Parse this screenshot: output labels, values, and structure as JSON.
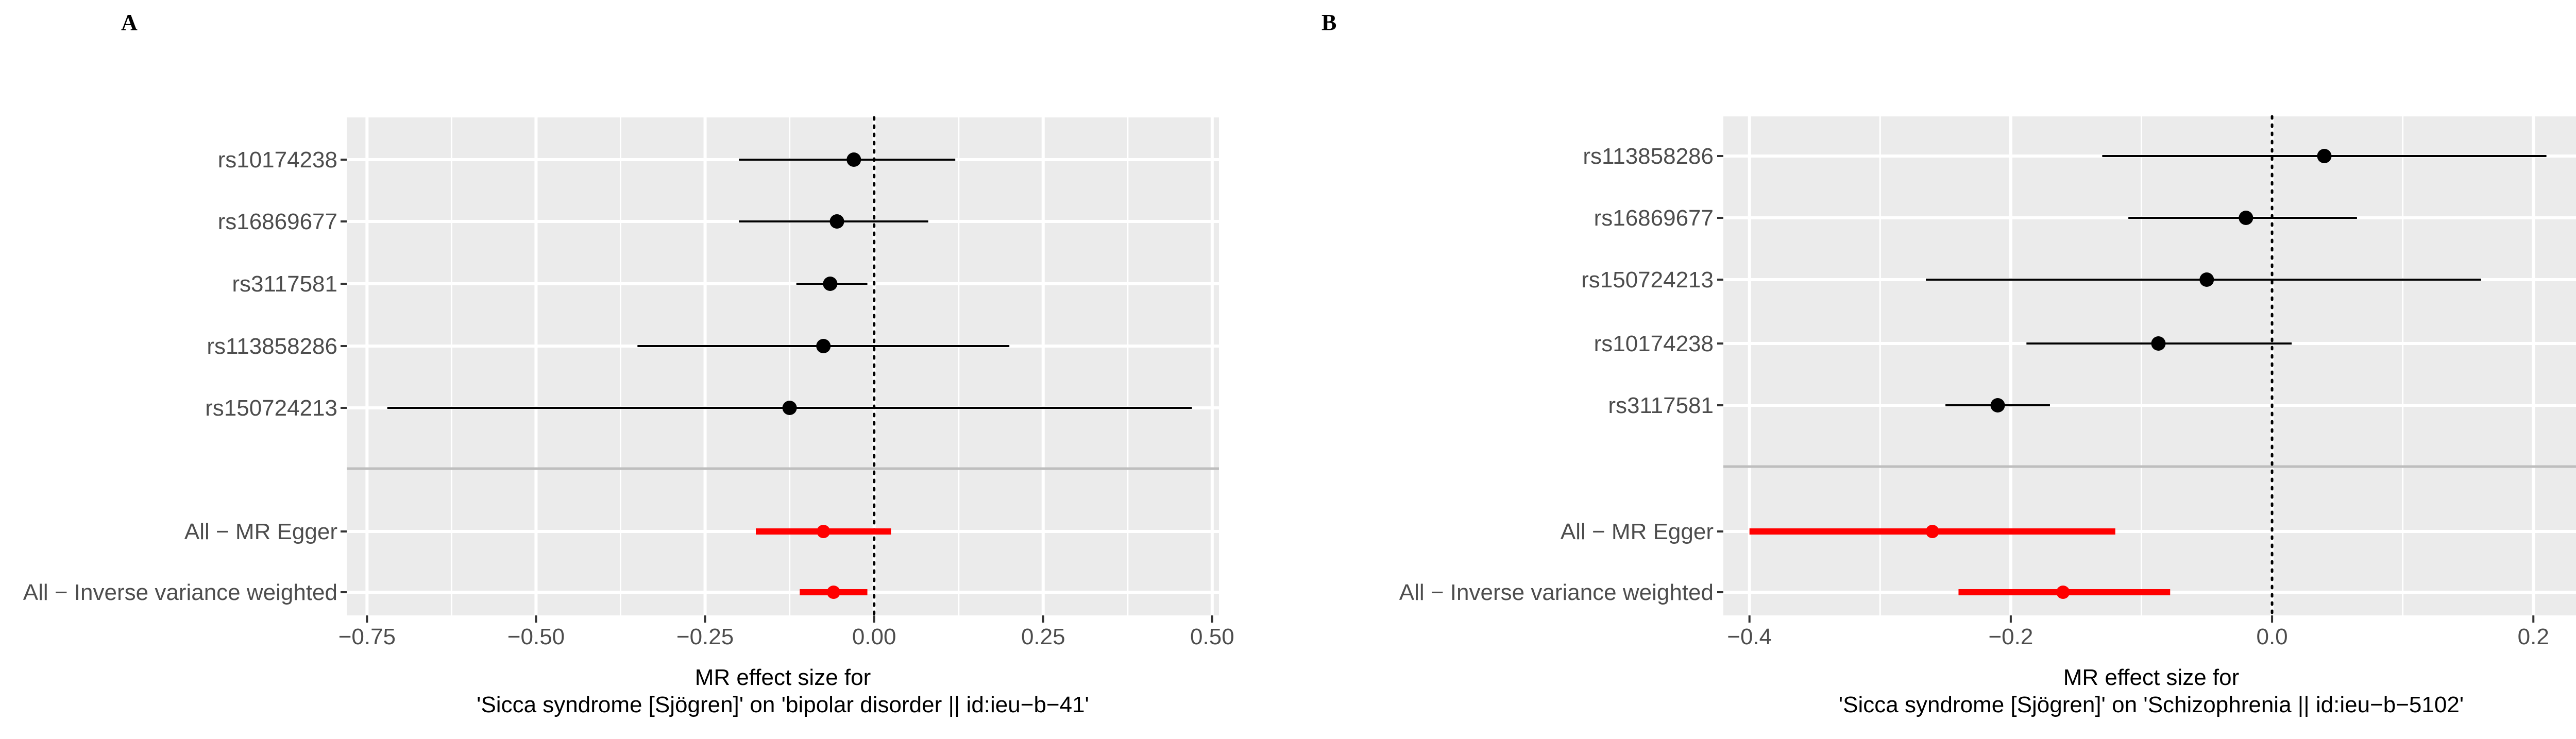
{
  "chart_data": [
    {
      "type": "forest",
      "panel": "A",
      "xlabel_line1": "MR effect size for",
      "xlabel_line2": "'Sicca syndrome [Sjögren]' on 'bipolar disorder || id:ieu−b−41'",
      "xlim": [
        -0.78,
        0.51
      ],
      "x_ticks": [
        -0.75,
        -0.5,
        -0.25,
        0,
        0.25,
        0.5
      ],
      "x_tick_labels": [
        "−0.75",
        "−0.50",
        "−0.25",
        "0.00",
        "0.25",
        "0.50"
      ],
      "grid": true,
      "reference_line": 0,
      "snps": [
        {
          "label": "rs10174238",
          "estimate": -0.03,
          "lower": -0.2,
          "upper": 0.12
        },
        {
          "label": "rs16869677",
          "estimate": -0.055,
          "lower": -0.2,
          "upper": 0.08
        },
        {
          "label": "rs3117581",
          "estimate": -0.065,
          "lower": -0.115,
          "upper": -0.01
        },
        {
          "label": "rs113858286",
          "estimate": -0.075,
          "lower": -0.35,
          "upper": 0.2
        },
        {
          "label": "rs150724213",
          "estimate": -0.125,
          "lower": -0.72,
          "upper": 0.47
        }
      ],
      "summary": [
        {
          "label": "All − MR Egger",
          "estimate": -0.075,
          "lower": -0.175,
          "upper": 0.025
        },
        {
          "label": "All − Inverse variance weighted",
          "estimate": -0.06,
          "lower": -0.11,
          "upper": -0.01
        }
      ],
      "colors": {
        "snp": "#000000",
        "summary": "#ff0000",
        "panel_bg": "#ebebeb",
        "grid": "#ffffff",
        "separator": "#bebebe"
      }
    },
    {
      "type": "forest",
      "panel": "B",
      "xlabel_line1": "MR effect size for",
      "xlabel_line2": "'Sicca syndrome [Sjögren]' on 'Schizophrenia || id:ieu−b−5102'",
      "xlim": [
        -0.42,
        0.235
      ],
      "x_ticks": [
        -0.4,
        -0.2,
        0,
        0.2
      ],
      "x_tick_labels": [
        "−0.4",
        "−0.2",
        "0.0",
        "0.2"
      ],
      "grid": true,
      "reference_line": 0,
      "snps": [
        {
          "label": "rs113858286",
          "estimate": 0.04,
          "lower": -0.13,
          "upper": 0.21
        },
        {
          "label": "rs16869677",
          "estimate": -0.02,
          "lower": -0.11,
          "upper": 0.065
        },
        {
          "label": "rs150724213",
          "estimate": -0.05,
          "lower": -0.265,
          "upper": 0.16
        },
        {
          "label": "rs10174238",
          "estimate": -0.087,
          "lower": -0.188,
          "upper": 0.015
        },
        {
          "label": "rs3117581",
          "estimate": -0.21,
          "lower": -0.25,
          "upper": -0.17
        }
      ],
      "summary": [
        {
          "label": "All − MR Egger",
          "estimate": -0.26,
          "lower": -0.4,
          "upper": -0.12
        },
        {
          "label": "All − Inverse variance weighted",
          "estimate": -0.16,
          "lower": -0.24,
          "upper": -0.078
        }
      ],
      "colors": {
        "snp": "#000000",
        "summary": "#ff0000",
        "panel_bg": "#ebebeb",
        "grid": "#ffffff",
        "separator": "#bebebe"
      }
    }
  ]
}
